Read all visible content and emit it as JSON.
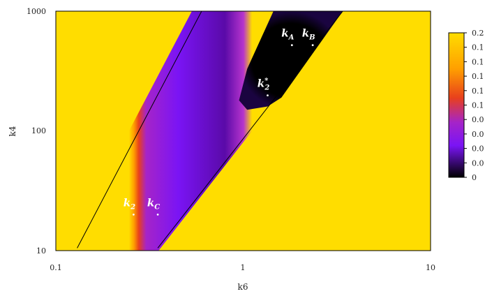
{
  "chart_data": {
    "type": "heatmap",
    "xlabel": "k6",
    "ylabel": "k4",
    "x_scale": "log",
    "y_scale": "log",
    "xlim": [
      0.1,
      10
    ],
    "ylim": [
      10,
      1000
    ],
    "x_ticks": [
      "0.1",
      "1",
      "10"
    ],
    "y_ticks": [
      "10",
      "100",
      "1000"
    ],
    "grid": false,
    "colorbar": {
      "placement": "right",
      "tick_labels": [
        "0.2",
        "0.1",
        "0.1",
        "0.1",
        "0.1",
        "0.1",
        "0.0",
        "0.0",
        "0.0",
        "0.0",
        "0"
      ],
      "colors": [
        "#ffdd00",
        "#ff9f00",
        "#e8401c",
        "#a524c8",
        "#7a14f5",
        "#000000"
      ]
    },
    "boundary_lines": [
      {
        "name": "upper",
        "points": [
          [
            0.13,
            10.5
          ],
          [
            0.6,
            1000
          ]
        ]
      },
      {
        "name": "lower",
        "points": [
          [
            0.35,
            10.5
          ],
          [
            3.4,
            1000
          ]
        ]
      }
    ],
    "annotations": [
      {
        "base": "k",
        "sub": "A",
        "sup": "",
        "x": 1.82,
        "y": 520
      },
      {
        "base": "k",
        "sub": "B",
        "sup": "",
        "x": 2.35,
        "y": 520
      },
      {
        "base": "k",
        "sub": "2",
        "sup": "*",
        "x": 1.35,
        "y": 198
      },
      {
        "base": "k",
        "sub": "2",
        "sup": "",
        "x": 0.26,
        "y": 20
      },
      {
        "base": "k",
        "sub": "C",
        "sup": "",
        "x": 0.35,
        "y": 20
      }
    ]
  }
}
